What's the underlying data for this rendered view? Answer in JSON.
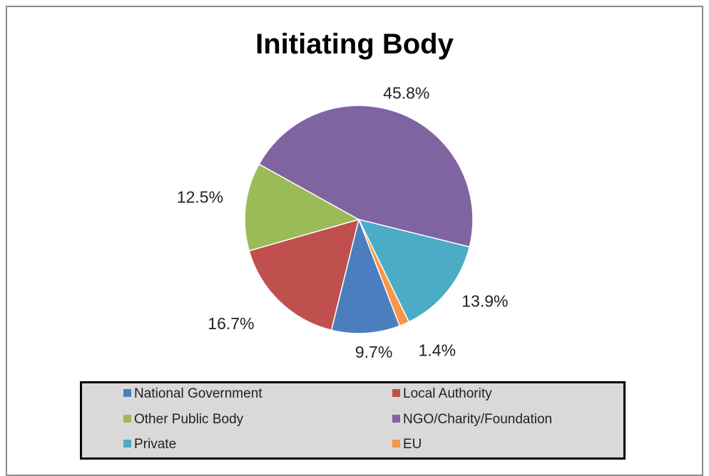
{
  "chart_data": {
    "type": "pie",
    "title": "Initiating Body",
    "slices": [
      {
        "name": "National Government",
        "value": 9.7,
        "label": "9.7%",
        "color": "#4a7ebf"
      },
      {
        "name": "Local Authority",
        "value": 16.7,
        "label": "16.7%",
        "color": "#c0504d"
      },
      {
        "name": "Other Public Body",
        "value": 12.5,
        "label": "12.5%",
        "color": "#9bbb59"
      },
      {
        "name": "NGO/Charity/Foundation",
        "value": 45.8,
        "label": "45.8%",
        "color": "#8064a2"
      },
      {
        "name": "Private",
        "value": 13.9,
        "label": "13.9%",
        "color": "#4bacc6"
      },
      {
        "name": "EU",
        "value": 1.4,
        "label": "1.4%",
        "color": "#f79646"
      }
    ],
    "legend_position": "bottom"
  }
}
